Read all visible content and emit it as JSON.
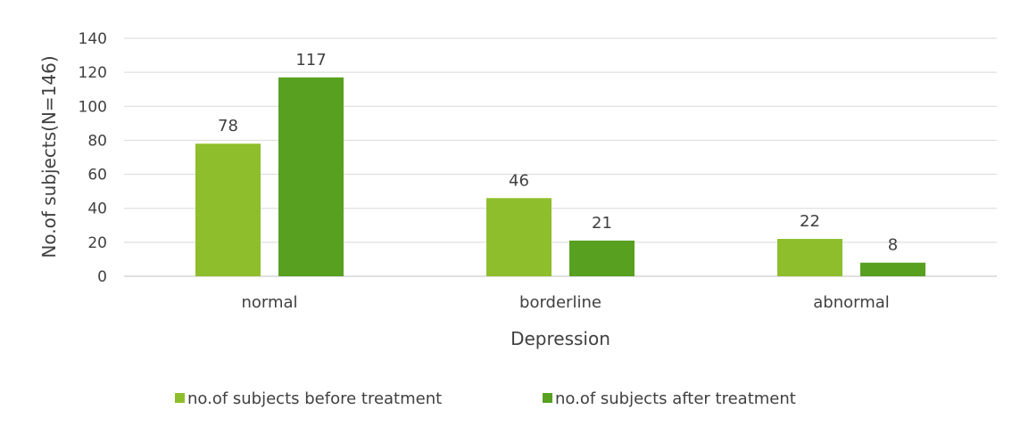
{
  "chart_data": {
    "type": "bar",
    "title": "",
    "xlabel": "Depression",
    "ylabel": "No.of subjects(N=146)",
    "categories": [
      "normal",
      "borderline",
      "abnormal"
    ],
    "series": [
      {
        "name": "no.of subjects before treatment",
        "values": [
          78,
          46,
          22
        ],
        "color": "#8fbe2c"
      },
      {
        "name": "no.of subjects after treatment",
        "values": [
          117,
          21,
          8
        ],
        "color": "#57a020"
      }
    ],
    "ylim": [
      0,
      140
    ],
    "yticks": [
      0,
      20,
      40,
      60,
      80,
      100,
      120,
      140
    ],
    "grid": true,
    "legend_position": "bottom",
    "data_labels": true
  }
}
